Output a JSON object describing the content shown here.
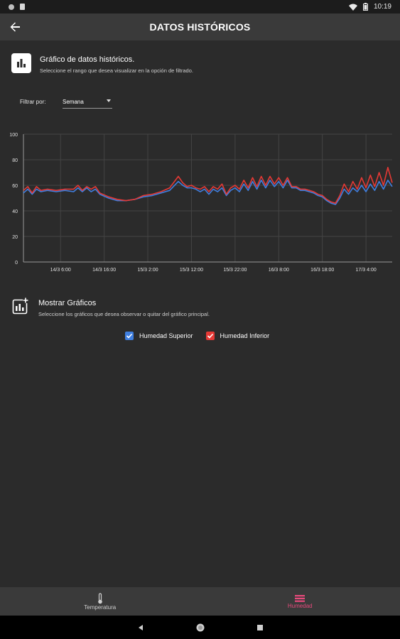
{
  "status_bar": {
    "time": "10:19"
  },
  "app_bar": {
    "title": "DATOS HISTÓRICOS"
  },
  "history_section": {
    "title": "Gráfico de datos históricos.",
    "subtitle": "Seleccione el rango que desea visualizar en la opción de filtrado."
  },
  "filter": {
    "label": "Filtrar por:",
    "selected": "Semana"
  },
  "charts_section": {
    "title": "Mostrar Gráficos",
    "subtitle": "Seleccione los gráficos que desea observar o quitar del gráfico principal."
  },
  "legend": {
    "upper_label": "Humedad Superior",
    "lower_label": "Humedad Inferior"
  },
  "bottom_nav": {
    "temperature": "Temperatura",
    "humidity": "Humedad"
  },
  "colors": {
    "upper": "#3f7fe0",
    "lower": "#e53935",
    "accent": "#e64a7c"
  },
  "chart_data": {
    "type": "line",
    "title": "",
    "xlabel": "",
    "ylabel": "",
    "ylim": [
      0,
      100
    ],
    "yticks": [
      0,
      20,
      40,
      60,
      80,
      100
    ],
    "xticks": [
      "14/3 6:00",
      "14/3 16:00",
      "15/3 2:00",
      "15/3 12:00",
      "15/3 22:00",
      "16/3 8:00",
      "16/3 18:00",
      "17/3 4:00"
    ],
    "xtick_hours": [
      6,
      16,
      26,
      36,
      46,
      56,
      66,
      76
    ],
    "x_hours_range": [
      -2.5,
      82
    ],
    "grid": true,
    "series": [
      {
        "name": "Humedad Superior",
        "x": [
          -2.5,
          -1.5,
          -0.5,
          0.5,
          1.5,
          3,
          5,
          7,
          9,
          10,
          11,
          12,
          13,
          14,
          15,
          17,
          19,
          21,
          23,
          25,
          27,
          29,
          31,
          33,
          34,
          35,
          36,
          37,
          38,
          39,
          40,
          41,
          42,
          43,
          44,
          45,
          46,
          47,
          48,
          49,
          50,
          51,
          52,
          53,
          54,
          55,
          56,
          57,
          58,
          59,
          60,
          61,
          62,
          63,
          64,
          65,
          66,
          67,
          68,
          69,
          70,
          71,
          72,
          73,
          74,
          75,
          76,
          77,
          78,
          79,
          80,
          81,
          82
        ],
        "y": [
          54,
          57,
          53,
          57,
          55,
          56,
          55,
          56,
          55,
          58,
          55,
          58,
          55,
          57,
          53,
          50,
          48,
          48,
          49,
          51,
          52,
          54,
          56,
          63,
          60,
          58,
          58,
          57,
          55,
          57,
          53,
          57,
          55,
          58,
          52,
          56,
          58,
          55,
          61,
          56,
          63,
          57,
          64,
          58,
          64,
          59,
          63,
          58,
          64,
          58,
          58,
          56,
          56,
          55,
          54,
          52,
          51,
          48,
          46,
          45,
          50,
          57,
          53,
          58,
          55,
          60,
          55,
          61,
          56,
          63,
          57,
          64,
          59
        ]
      },
      {
        "name": "Humedad Inferior",
        "x": [
          -2.5,
          -1.5,
          -0.5,
          0.5,
          1.5,
          3,
          5,
          7,
          9,
          10,
          11,
          12,
          13,
          14,
          15,
          17,
          19,
          21,
          23,
          25,
          27,
          29,
          31,
          33,
          34,
          35,
          36,
          37,
          38,
          39,
          40,
          41,
          42,
          43,
          44,
          45,
          46,
          47,
          48,
          49,
          50,
          51,
          52,
          53,
          54,
          55,
          56,
          57,
          58,
          59,
          60,
          61,
          62,
          63,
          64,
          65,
          66,
          67,
          68,
          69,
          70,
          71,
          72,
          73,
          74,
          75,
          76,
          77,
          78,
          79,
          80,
          81,
          82
        ],
        "y": [
          56,
          59,
          54,
          59,
          56,
          57,
          56,
          57,
          57,
          60,
          56,
          59,
          57,
          59,
          54,
          51,
          49,
          48,
          49,
          52,
          53,
          55,
          58,
          67,
          62,
          59,
          60,
          58,
          57,
          59,
          55,
          59,
          57,
          61,
          53,
          58,
          60,
          57,
          64,
          58,
          66,
          59,
          67,
          60,
          67,
          61,
          66,
          60,
          66,
          59,
          59,
          57,
          57,
          56,
          55,
          53,
          52,
          49,
          47,
          46,
          52,
          61,
          55,
          63,
          57,
          66,
          58,
          68,
          59,
          70,
          60,
          74,
          62
        ]
      }
    ]
  }
}
